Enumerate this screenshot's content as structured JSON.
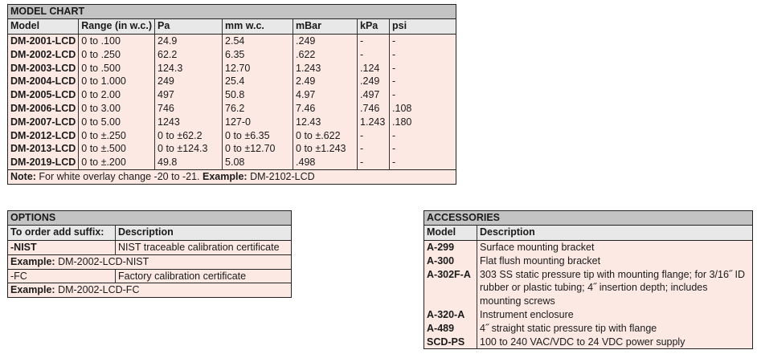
{
  "model_chart": {
    "title": "MODEL CHART",
    "columns": [
      "Model",
      "Range (in w.c.)",
      "Pa",
      "mm w.c.",
      "mBar",
      "kPa",
      "psi"
    ],
    "rows": [
      [
        "DM-2001-LCD",
        "0 to .100",
        "24.9",
        "2.54",
        ".249",
        "-",
        "-"
      ],
      [
        "DM-2002-LCD",
        "0 to .250",
        "62.2",
        "6.35",
        ".622",
        "-",
        "-"
      ],
      [
        "DM-2003-LCD",
        "0 to .500",
        "124.3",
        "12.70",
        "1.243",
        ".124",
        "-"
      ],
      [
        "DM-2004-LCD",
        "0 to 1.000",
        "249",
        "25.4",
        "2.49",
        ".249",
        "-"
      ],
      [
        "DM-2005-LCD",
        "0 to 2.00",
        "497",
        "50.8",
        "4.97",
        ".497",
        "-"
      ],
      [
        "DM-2006-LCD",
        "0 to 3.00",
        "746",
        "76.2",
        "7.46",
        ".746",
        ".108"
      ],
      [
        "DM-2007-LCD",
        "0 to 5.00",
        "1243",
        "127-0",
        "12.43",
        "1.243",
        ".180"
      ],
      [
        "DM-2012-LCD",
        "0 to ±.250",
        "0 to ±62.2",
        "0 to ±6.35",
        "0 to ±.622",
        "-",
        "-"
      ],
      [
        "DM-2013-LCD",
        "0 to ±.500",
        "0 to ±124.3",
        "0 to ±12.70",
        "0 to ±1.243",
        "-",
        "-"
      ],
      [
        "DM-2019-LCD",
        "0 to ±.200",
        "49.8",
        "5.08",
        ".498",
        "-",
        "-"
      ]
    ],
    "note_label": "Note:",
    "note_text": " For white overlay change -20 to -21. ",
    "example_label": "Example:",
    "example_text": " DM-2102-LCD"
  },
  "options": {
    "title": "OPTIONS",
    "columns": [
      "To order add suffix:",
      "Description"
    ],
    "items": [
      {
        "suffix": "-NIST",
        "description": "NIST traceable calibration certificate",
        "example_label": "Example:",
        "example": " DM-2002-LCD-NIST"
      },
      {
        "suffix": "-FC",
        "description": "Factory calibration certificate",
        "example_label": "Example:",
        "example": " DM-2002-LCD-FC"
      }
    ]
  },
  "accessories": {
    "title": "ACCESSORIES",
    "columns": [
      "Model",
      "Description"
    ],
    "rows": [
      [
        "A-299",
        "Surface mounting bracket"
      ],
      [
        "A-300",
        "Flat flush mounting bracket"
      ],
      [
        "A-302F-A",
        "303 SS static pressure tip with mounting flange; for 3/16˝ ID rubber or plastic tubing; 4˝ insertion depth; includes mounting screws"
      ],
      [
        "A-320-A",
        "Instrument enclosure"
      ],
      [
        "A-489",
        "4˝ straight static pressure tip with flange"
      ],
      [
        "SCD-PS",
        "100 to 240 VAC/VDC to 24 VDC power supply"
      ]
    ]
  },
  "colors": {
    "title_bg": "#c3c3c3",
    "header_bg": "#e8e8e8",
    "body_bg": "#fde9e3"
  }
}
